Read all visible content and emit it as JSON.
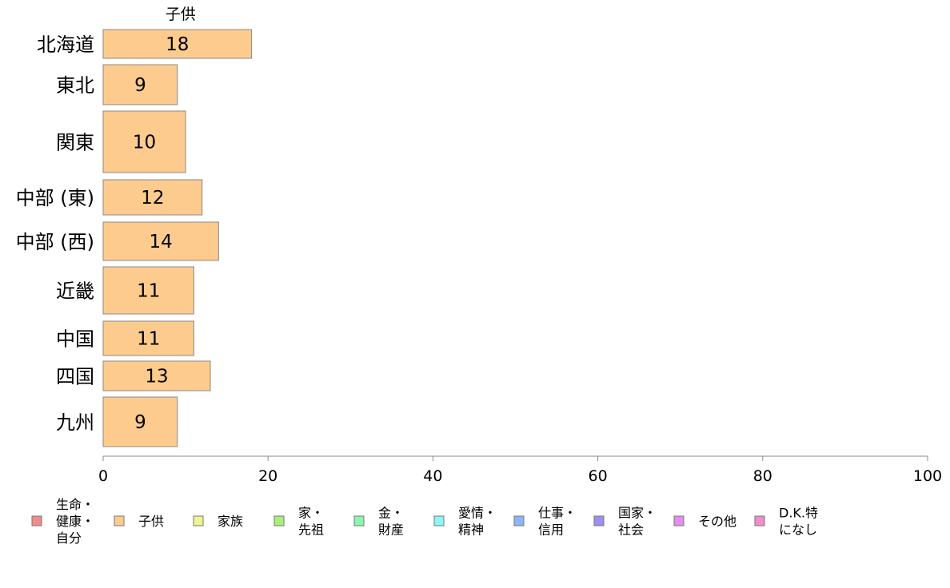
{
  "chart_data": {
    "type": "bar",
    "orientation": "horizontal",
    "title": "",
    "panel_title": "子供",
    "xlabel": "",
    "ylabel": "",
    "xlim": [
      0,
      100
    ],
    "x_ticks": [
      0,
      20,
      40,
      60,
      80,
      100
    ],
    "grid": false,
    "legend_position": "bottom",
    "categories": [
      "北海道",
      "東北",
      "関東",
      "中部 (東)",
      "中部 (西)",
      "近畿",
      "中国",
      "四国",
      "九州"
    ],
    "series": [
      {
        "name": "子供",
        "color": "#FDCB8E",
        "values": [
          18,
          9,
          10,
          12,
          14,
          11,
          11,
          13,
          9
        ]
      }
    ],
    "legend": [
      {
        "label": "生命・\n健康・\n自分",
        "color": "#F28B8B"
      },
      {
        "label": "子供",
        "color": "#FDCB8E"
      },
      {
        "label": "家族",
        "color": "#EEF58E"
      },
      {
        "label": "家・\n先祖",
        "color": "#A8F07A"
      },
      {
        "label": "金・\n財産",
        "color": "#8EF5B0"
      },
      {
        "label": "愛情・\n精神",
        "color": "#8EF5F5"
      },
      {
        "label": "仕事・\n信用",
        "color": "#8EB5F5"
      },
      {
        "label": "国家・\n社会",
        "color": "#A08EF0"
      },
      {
        "label": "その他",
        "color": "#E58EF0"
      },
      {
        "label": "D.K.特\nになし",
        "color": "#F08EC8"
      }
    ]
  }
}
